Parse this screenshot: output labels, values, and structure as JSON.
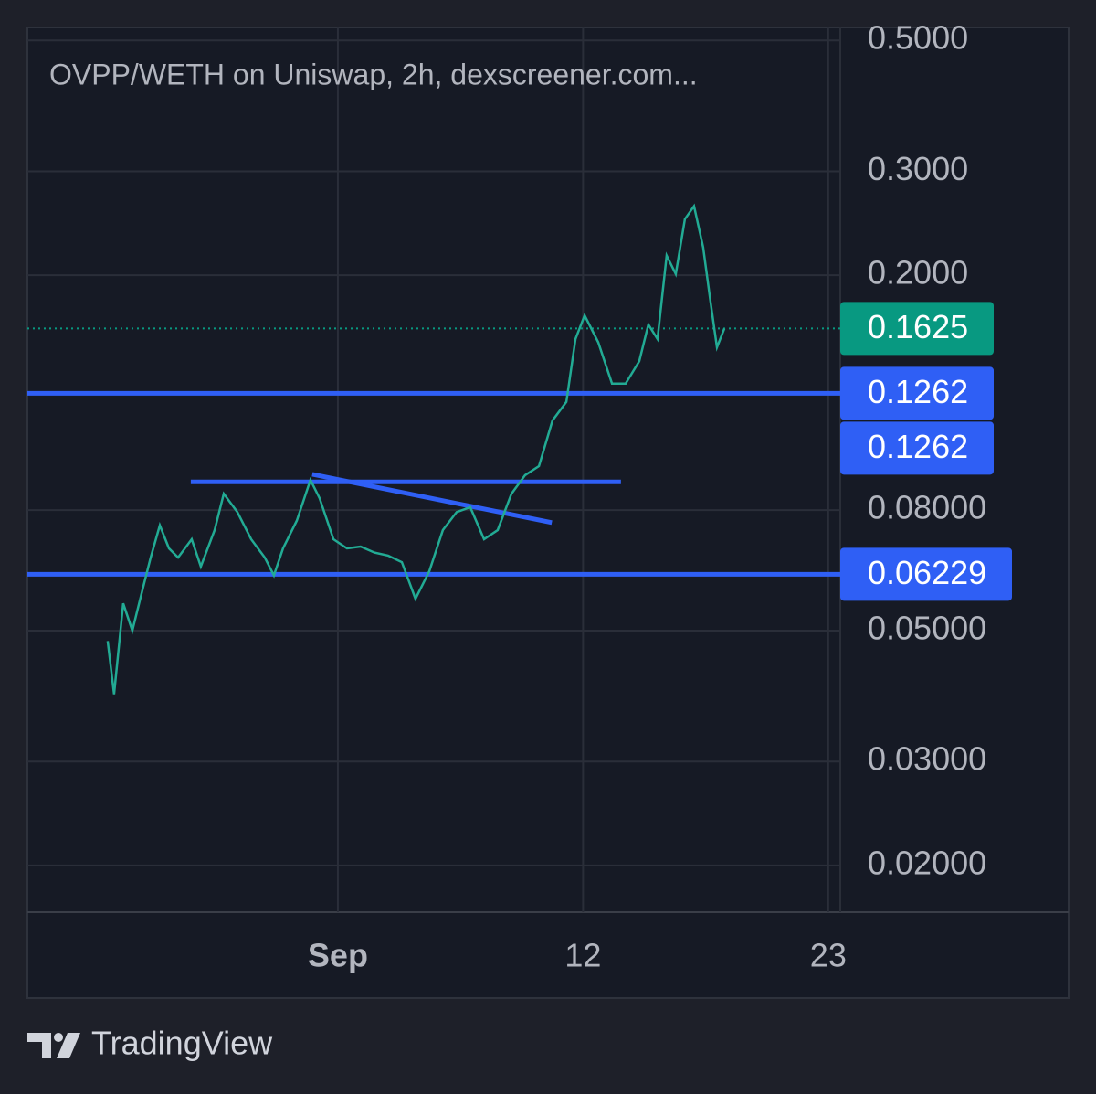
{
  "chart_data": {
    "type": "line",
    "title": "OVPP/WETH on Uniswap, 2h, dexscreener.com...",
    "log_scale": true,
    "grid": true,
    "xlim": [
      -12.93,
      23.54
    ],
    "xticks": [
      {
        "value": 1,
        "label": "Sep"
      },
      12,
      23
    ],
    "ylim": [
      0.01667,
      0.526
    ],
    "yticks": [
      {
        "value": 0.5,
        "label": "0.5000"
      },
      {
        "value": 0.3,
        "label": "0.3000"
      },
      {
        "value": 0.2,
        "label": "0.2000"
      },
      {
        "value": 0.08,
        "label": "0.08000"
      },
      {
        "value": 0.05,
        "label": "0.05000"
      },
      {
        "value": 0.03,
        "label": "0.03000"
      },
      {
        "value": 0.02,
        "label": "0.02000"
      }
    ],
    "x": [
      -9.33,
      -9.04,
      -8.63,
      -8.22,
      -7.81,
      -7.4,
      -6.99,
      -6.58,
      -6.17,
      -5.56,
      -5.15,
      -4.53,
      -4.12,
      -3.51,
      -2.89,
      -2.28,
      -1.87,
      -1.46,
      -0.84,
      -0.23,
      0.18,
      0.8,
      1.41,
      2.02,
      2.64,
      3.25,
      3.87,
      4.48,
      5.1,
      5.71,
      6.33,
      6.94,
      7.56,
      8.17,
      8.79,
      9.4,
      10.02,
      10.63,
      11.25,
      11.66,
      12.07,
      12.68,
      13.3,
      13.91,
      14.52,
      14.93,
      15.34,
      15.75,
      16.16,
      16.57,
      16.98,
      17.39,
      17.72,
      18.01,
      18.34
    ],
    "series": [
      {
        "color": "#22ab94",
        "values": [
          0.048,
          0.039,
          0.0556,
          0.05,
          0.0577,
          0.0665,
          0.0754,
          0.0689,
          0.0665,
          0.0714,
          0.0642,
          0.074,
          0.0853,
          0.0794,
          0.0714,
          0.0665,
          0.062,
          0.0689,
          0.0768,
          0.09,
          0.0838,
          0.0714,
          0.0689,
          0.0694,
          0.0678,
          0.067,
          0.0653,
          0.0566,
          0.063,
          0.074,
          0.0794,
          0.0809,
          0.0714,
          0.074,
          0.0853,
          0.0917,
          0.095,
          0.1135,
          0.122,
          0.156,
          0.171,
          0.154,
          0.131,
          0.131,
          0.143,
          0.165,
          0.156,
          0.216,
          0.201,
          0.249,
          0.262,
          0.223,
          0.18,
          0.151,
          0.1625
        ]
      }
    ],
    "last_price": {
      "value": 0.1625,
      "color": "#089981"
    },
    "horizontal_lines": [
      {
        "value": 0.1262,
        "color": "#2f5ff5"
      },
      {
        "value": 0.06229,
        "color": "#2f5ff5"
      }
    ],
    "drawings": [
      {
        "x": [
          -5.6,
          13.7
        ],
        "values": [
          0.0893,
          0.0893
        ],
        "color": "#2f5ff5"
      },
      {
        "x": [
          -0.15,
          10.6
        ],
        "values": [
          0.092,
          0.0762
        ],
        "color": "#2f5ff5"
      }
    ],
    "price_tags": [
      {
        "value": 0.1625,
        "color": "#089981"
      },
      {
        "value": 0.1262,
        "color": "#2f5ff5"
      },
      {
        "value": 0.1262,
        "color": "#2f5ff5"
      },
      {
        "value": 0.06229,
        "color": "#2f5ff5"
      }
    ]
  },
  "footer": {
    "brand": "TradingView"
  }
}
